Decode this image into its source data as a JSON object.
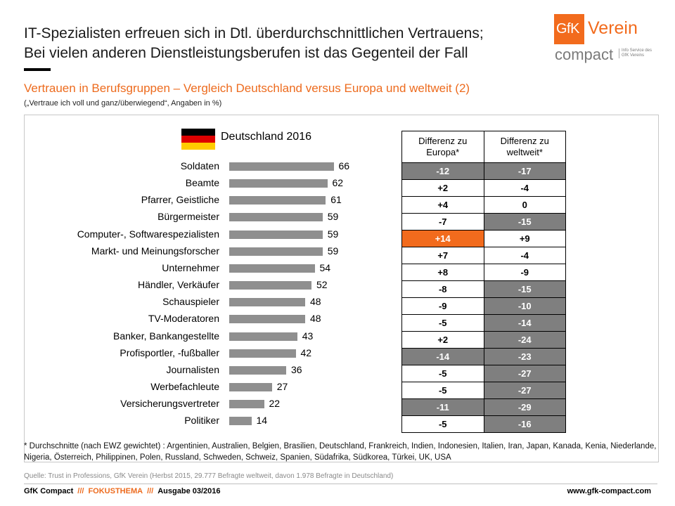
{
  "title": {
    "line1": "IT-Spezialisten erfreuen sich in Dtl. überdurchschnittlichen Vertrauens;",
    "line2": "Bei vielen anderen Dienstleistungsberufen ist das Gegenteil der Fall"
  },
  "logo": {
    "gfk": "GfK",
    "verein": "Verein",
    "compact": "compact",
    "info_line1": "Info Service des",
    "info_line2": "GfK Vereins"
  },
  "subtitle": "Vertrauen in Berufsgruppen – Vergleich Deutschland versus Europa und weltweit (2)",
  "note": "(„Vertraue ich voll und ganz/überwiegend“, Angaben in %)",
  "flag_colors": [
    "#000000",
    "#dd0000",
    "#ffcc00"
  ],
  "colors": {
    "bar": "#8f8f8f",
    "accent": "#f26b1d",
    "highlight_gray": "#7f7f7f"
  },
  "chart_data": {
    "type": "bar",
    "orientation": "horizontal",
    "categories": [
      "Soldaten",
      "Beamte",
      "Pfarrer, Geistliche",
      "Bürgermeister",
      "Computer-, Softwarespezialisten",
      "Markt- und Meinungsforscher",
      "Unternehmer",
      "Händler, Verkäufer",
      "Schauspieler",
      "TV-Moderatoren",
      "Banker, Bankangestellte",
      "Profisportler, -fußballer",
      "Journalisten",
      "Werbefachleute",
      "Versicherungsvertreter",
      "Politiker"
    ],
    "series": [
      {
        "name": "Deutschland 2016",
        "values": [
          66,
          62,
          61,
          59,
          59,
          59,
          54,
          52,
          48,
          48,
          43,
          42,
          36,
          27,
          22,
          14
        ]
      }
    ],
    "xlim": [
      0,
      100
    ]
  },
  "diff_table": {
    "headers": [
      "Differenz zu Europa*",
      "Differenz zu weltweit*"
    ],
    "rows": [
      {
        "europa": "-12",
        "welt": "-17",
        "eu_hl": "gray",
        "w_hl": "gray"
      },
      {
        "europa": "+2",
        "welt": "-4",
        "eu_hl": "",
        "w_hl": ""
      },
      {
        "europa": "+4",
        "welt": "0",
        "eu_hl": "",
        "w_hl": ""
      },
      {
        "europa": "-7",
        "welt": "-15",
        "eu_hl": "",
        "w_hl": "gray"
      },
      {
        "europa": "+14",
        "welt": "+9",
        "eu_hl": "orange",
        "w_hl": ""
      },
      {
        "europa": "+7",
        "welt": "-4",
        "eu_hl": "",
        "w_hl": ""
      },
      {
        "europa": "+8",
        "welt": "-9",
        "eu_hl": "",
        "w_hl": ""
      },
      {
        "europa": "-8",
        "welt": "-15",
        "eu_hl": "",
        "w_hl": "gray"
      },
      {
        "europa": "-9",
        "welt": "-10",
        "eu_hl": "",
        "w_hl": "gray"
      },
      {
        "europa": "-5",
        "welt": "-14",
        "eu_hl": "",
        "w_hl": "gray"
      },
      {
        "europa": "+2",
        "welt": "-24",
        "eu_hl": "",
        "w_hl": "gray"
      },
      {
        "europa": "-14",
        "welt": "-23",
        "eu_hl": "gray",
        "w_hl": "gray"
      },
      {
        "europa": "-5",
        "welt": "-27",
        "eu_hl": "",
        "w_hl": "gray"
      },
      {
        "europa": "-5",
        "welt": "-27",
        "eu_hl": "",
        "w_hl": "gray"
      },
      {
        "europa": "-11",
        "welt": "-29",
        "eu_hl": "gray",
        "w_hl": "gray"
      },
      {
        "europa": "-5",
        "welt": "-16",
        "eu_hl": "",
        "w_hl": "gray"
      }
    ]
  },
  "footnote": "* Durchschnitte (nach EWZ gewichtet) : Argentinien, Australien, Belgien, Brasilien, Deutschland, Frankreich, Indien, Indonesien, Italien, Iran, Japan, Kanada, Kenia, Niederlande, Nigeria, Österreich, Philippinen, Polen, Russland, Schweden, Schweiz, Spanien, Südafrika, Südkorea, Türkei, UK, USA",
  "source": "Quelle: Trust in Professions, GfK Verein (Herbst 2015, 29.777 Befragte weltweit, davon 1.978 Befragte in Deutschland)",
  "footer": {
    "brand": "GfK Compact",
    "sep": "///",
    "topic": "FOKUSTHEMA",
    "issue": "Ausgabe 03/2016",
    "url": "www.gfk-compact.com"
  }
}
